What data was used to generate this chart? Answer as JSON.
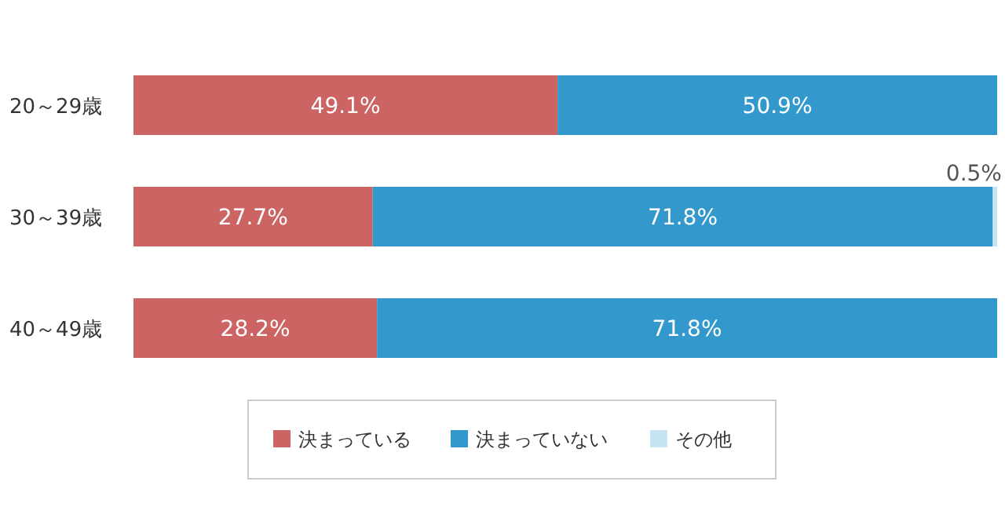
{
  "chart_data": {
    "type": "bar",
    "orientation": "horizontal",
    "stacked": true,
    "legend": "bottom",
    "categories": [
      "20～29歳",
      "30～39歳",
      "40～49歳"
    ],
    "series": [
      {
        "name": "決まっている",
        "color": "#cd6464",
        "values": [
          49.1,
          27.7,
          28.2
        ],
        "value_labels": [
          "49.1%",
          "27.7%",
          "28.2%"
        ]
      },
      {
        "name": "決まっていない",
        "color": "#3399cc",
        "values": [
          50.9,
          71.8,
          71.8
        ],
        "value_labels": [
          "50.9%",
          "71.8%",
          "71.8%"
        ]
      },
      {
        "name": "その他",
        "color": "#c5e3f3",
        "values": [
          null,
          0.5,
          null
        ],
        "value_labels": [
          null,
          "0.5%",
          null
        ]
      }
    ]
  }
}
